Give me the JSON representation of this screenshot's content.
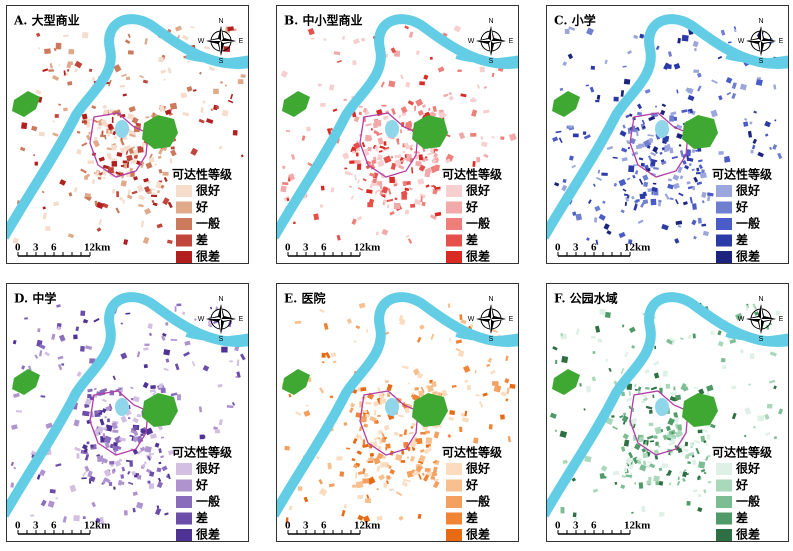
{
  "panels": [
    {
      "label": "A. 大型商业",
      "colors": [
        "#f6dccb",
        "#e0a98a",
        "#cc7a5c",
        "#c0453a",
        "#b11f1f"
      ]
    },
    {
      "label": "B. 中小型商业",
      "colors": [
        "#f7cfcf",
        "#f2a9a9",
        "#ee7f7b",
        "#e5514a",
        "#d92a24"
      ]
    },
    {
      "label": "C. 小学",
      "colors": [
        "#9aa6dc",
        "#6e7fd0",
        "#4a5cc7",
        "#2c3aa8",
        "#1b237c"
      ]
    },
    {
      "label": "D. 中学",
      "colors": [
        "#d3bfe2",
        "#ae93cf",
        "#8a6cbd",
        "#6a4eaa",
        "#4e3394"
      ]
    },
    {
      "label": "E. 医院",
      "colors": [
        "#fbdcbf",
        "#f8c08f",
        "#f4a060",
        "#f08334",
        "#e96a14"
      ]
    },
    {
      "label": "F. 公园水域",
      "colors": [
        "#dff1e6",
        "#a9d8bb",
        "#7cbd94",
        "#4f9a68",
        "#2e7044"
      ]
    }
  ],
  "legend": {
    "title": "可达性等级",
    "items": [
      "很好",
      "好",
      "一般",
      "差",
      "很差"
    ]
  },
  "scale_bar": [
    "0",
    "3",
    "6",
    "12km"
  ],
  "compass": {
    "north": "N",
    "south": "S",
    "west": "W",
    "east": "E"
  }
}
